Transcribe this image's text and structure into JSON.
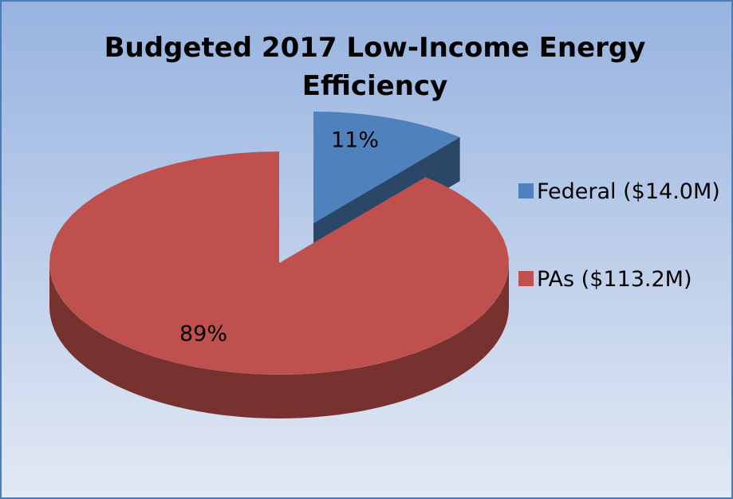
{
  "chart_data": {
    "type": "pie",
    "title": "Budgeted 2017 Low-Income Energy Efficiency",
    "categories": [
      "Federal ($14.0M)",
      "PAs ($113.2M)"
    ],
    "values": [
      11,
      89
    ],
    "value_labels": [
      "11%",
      "89%"
    ],
    "colors": [
      "#4f81bd",
      "#c0504d"
    ],
    "legend": "right"
  }
}
